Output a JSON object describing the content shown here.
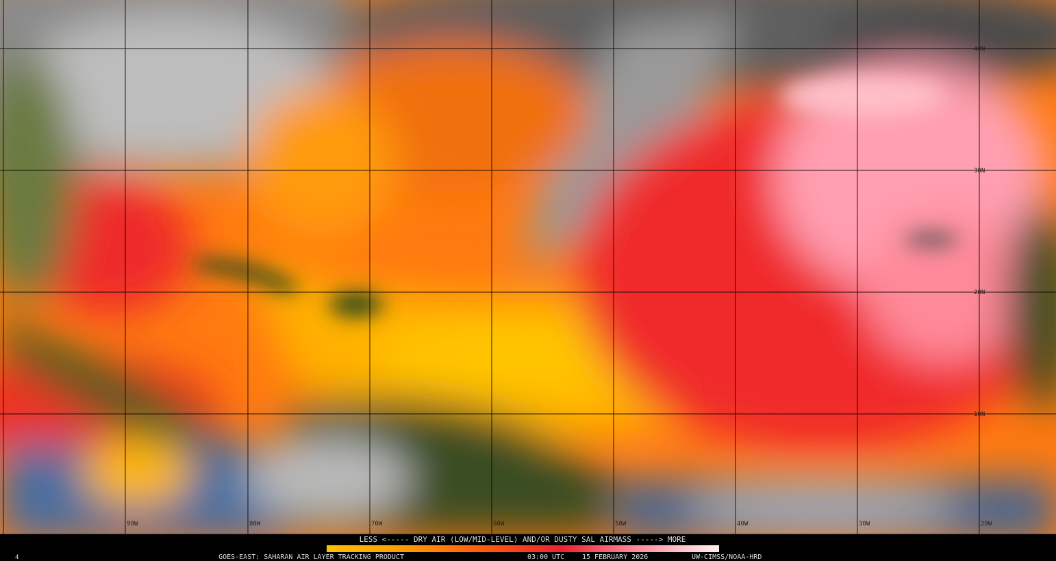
{
  "map": {
    "latitude_labels": [
      "40N",
      "30N",
      "20N",
      "10N"
    ],
    "longitude_labels": [
      "90W",
      "80W",
      "70W",
      "60W",
      "50W",
      "40W",
      "30W",
      "20W"
    ],
    "legend": {
      "caption": "LESS <----- DRY AIR (LOW/MID-LEVEL) AND/OR DUSTY SAL AIRMASS -----> MORE"
    },
    "footer": {
      "product": "GOES-EAST: SAHARAN AIR LAYER TRACKING PRODUCT",
      "time": "03:00 UTC",
      "date": "15 FEBRUARY 2026",
      "credit": "UW-CIMSS/NOAA-HRD",
      "frame": "4"
    }
  }
}
